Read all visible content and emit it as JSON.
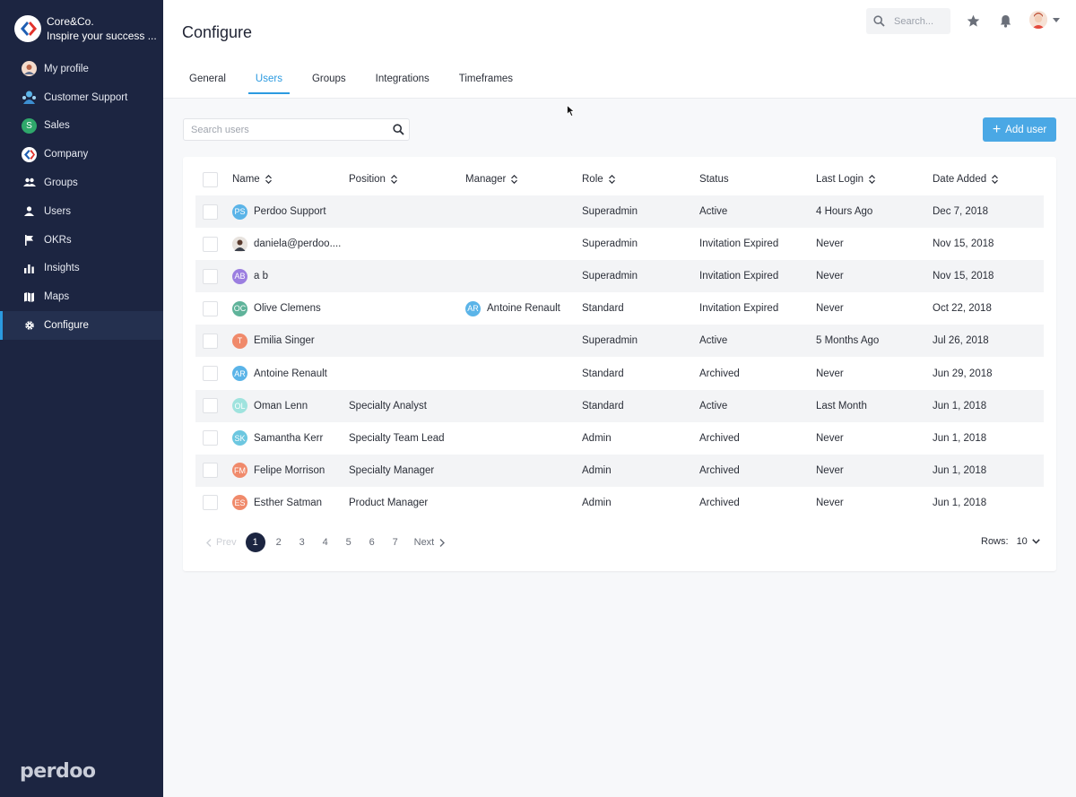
{
  "org": {
    "name": "Core&Co.",
    "tagline": "Inspire your success ..."
  },
  "sidebar": {
    "items": [
      {
        "label": "My profile",
        "icon": "profile-avatar-icon"
      },
      {
        "label": "Customer Support",
        "icon": "support-team-icon"
      },
      {
        "label": "Sales",
        "icon": "sales-badge-icon",
        "badge": "S"
      },
      {
        "label": "Company",
        "icon": "company-logo-icon"
      },
      {
        "label": "Groups",
        "icon": "groups-icon"
      },
      {
        "label": "Users",
        "icon": "user-icon"
      },
      {
        "label": "OKRs",
        "icon": "flag-icon"
      },
      {
        "label": "Insights",
        "icon": "bar-chart-icon"
      },
      {
        "label": "Maps",
        "icon": "map-icon"
      },
      {
        "label": "Configure",
        "icon": "gear-icon",
        "active": true
      }
    ],
    "brand": "perdoo"
  },
  "header": {
    "title": "Configure",
    "search_placeholder": "Search...",
    "tabs": [
      "General",
      "Users",
      "Groups",
      "Integrations",
      "Timeframes"
    ],
    "active_tab": "Users"
  },
  "toolbar": {
    "search_placeholder": "Search users",
    "add_user_label": "Add user"
  },
  "table": {
    "columns": [
      {
        "label": "Name",
        "sortable": true
      },
      {
        "label": "Position",
        "sortable": true
      },
      {
        "label": "Manager",
        "sortable": true
      },
      {
        "label": "Role",
        "sortable": true
      },
      {
        "label": "Status",
        "sortable": false
      },
      {
        "label": "Last Login",
        "sortable": true
      },
      {
        "label": "Date Added",
        "sortable": true
      }
    ],
    "rows": [
      {
        "initials": "PS",
        "color": "#5bb4e8",
        "name": "Perdoo Support",
        "position": "",
        "manager": "",
        "role": "Superadmin",
        "status": "Active",
        "last_login": "4 Hours Ago",
        "date_added": "Dec 7, 2018"
      },
      {
        "initials": "",
        "color": "#8a8f99",
        "photo": true,
        "name": "daniela@perdoo....",
        "position": "",
        "manager": "",
        "role": "Superadmin",
        "status": "Invitation Expired",
        "last_login": "Never",
        "date_added": "Nov 15, 2018"
      },
      {
        "initials": "AB",
        "color": "#9b7ee0",
        "name": "a b",
        "position": "",
        "manager": "",
        "role": "Superadmin",
        "status": "Invitation Expired",
        "last_login": "Never",
        "date_added": "Nov 15, 2018"
      },
      {
        "initials": "OC",
        "color": "#5fb39a",
        "name": "Olive Clemens",
        "position": "",
        "manager": "Antoine Renault",
        "manager_initials": "AR",
        "manager_color": "#5bb4e8",
        "role": "Standard",
        "status": "Invitation Expired",
        "last_login": "Never",
        "date_added": "Oct 22, 2018"
      },
      {
        "initials": "T",
        "color": "#f08a6b",
        "name": "Emilia Singer",
        "position": "",
        "manager": "",
        "role": "Superadmin",
        "status": "Active",
        "last_login": "5 Months Ago",
        "date_added": "Jul 26, 2018"
      },
      {
        "initials": "AR",
        "color": "#5bb4e8",
        "name": "Antoine Renault",
        "position": "",
        "manager": "",
        "role": "Standard",
        "status": "Archived",
        "last_login": "Never",
        "date_added": "Jun 29, 2018"
      },
      {
        "initials": "OL",
        "color": "#9fe3de",
        "name": "Oman Lenn",
        "position": "Specialty Analyst",
        "manager": "",
        "role": "Standard",
        "status": "Active",
        "last_login": "Last Month",
        "date_added": "Jun 1, 2018"
      },
      {
        "initials": "SK",
        "color": "#6cc7e0",
        "name": "Samantha Kerr",
        "position": "Specialty Team Lead",
        "manager": "",
        "role": "Admin",
        "status": "Archived",
        "last_login": "Never",
        "date_added": "Jun 1, 2018"
      },
      {
        "initials": "FM",
        "color": "#f08a6b",
        "name": "Felipe Morrison",
        "position": "Specialty Manager",
        "manager": "",
        "role": "Admin",
        "status": "Archived",
        "last_login": "Never",
        "date_added": "Jun 1, 2018"
      },
      {
        "initials": "ES",
        "color": "#f08a6b",
        "name": "Esther Satman",
        "position": "Product Manager",
        "manager": "",
        "role": "Admin",
        "status": "Archived",
        "last_login": "Never",
        "date_added": "Jun 1, 2018"
      }
    ]
  },
  "pagination": {
    "prev_label": "Prev",
    "next_label": "Next",
    "pages": [
      "1",
      "2",
      "3",
      "4",
      "5",
      "6",
      "7"
    ],
    "current": "1",
    "rows_label": "Rows:",
    "rows_value": "10"
  },
  "colors": {
    "sidebar": "#1c2541",
    "accent": "#2b9ae0",
    "button": "#4aa8e5"
  }
}
